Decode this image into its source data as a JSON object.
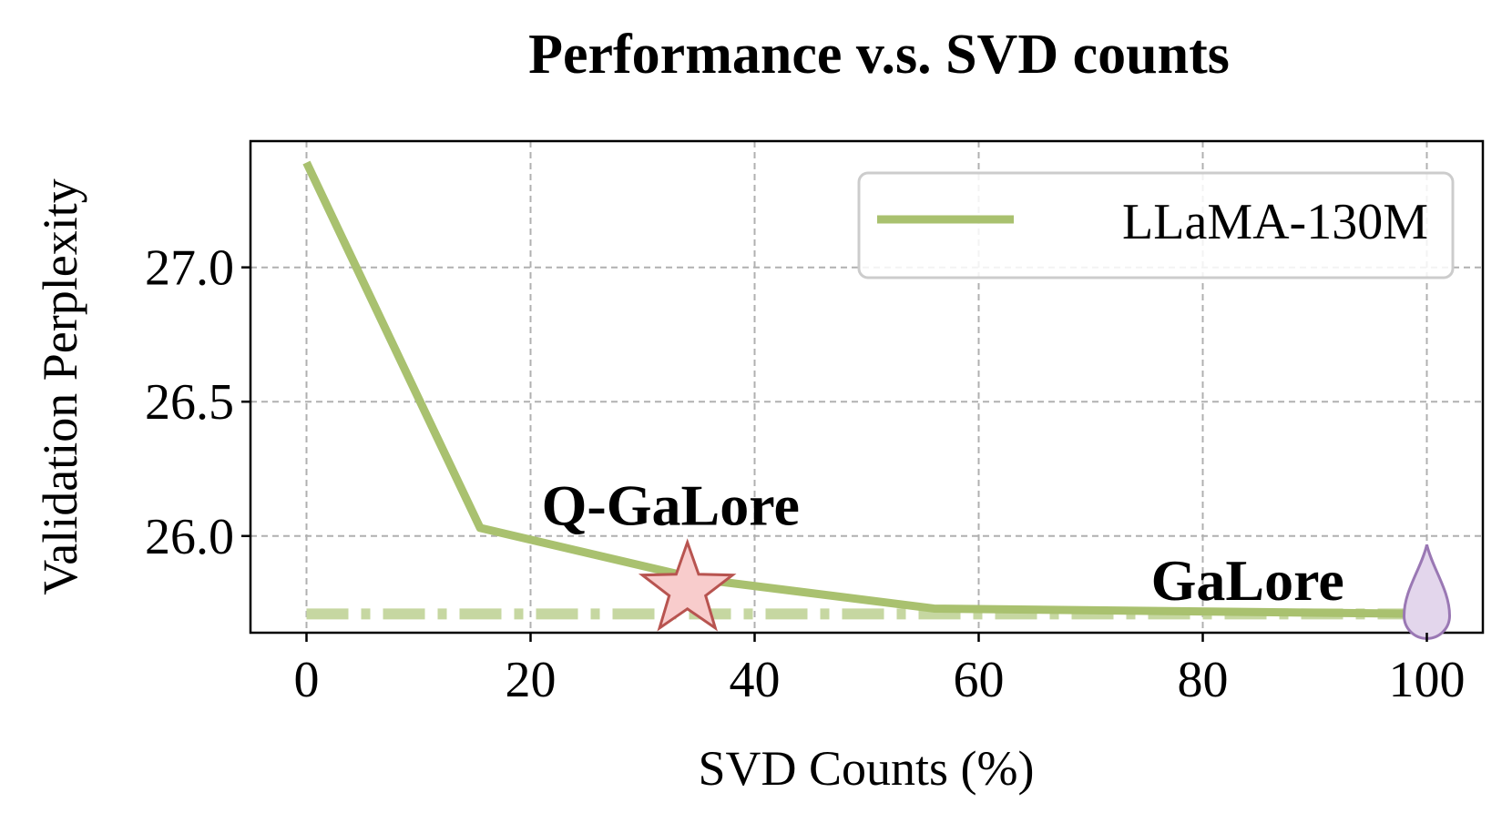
{
  "chart_data": {
    "type": "line",
    "title": "Performance v.s. SVD counts",
    "xlabel": "SVD Counts (%)",
    "ylabel": "Validation Perplexity",
    "xlim": [
      -5,
      105
    ],
    "ylim": [
      25.64,
      27.47
    ],
    "xticks": [
      0,
      20,
      40,
      60,
      80,
      100
    ],
    "xtick_labels": [
      "0",
      "20",
      "40",
      "60",
      "80",
      "100"
    ],
    "yticks": [
      26.0,
      26.5,
      27.0
    ],
    "ytick_labels": [
      "26.0",
      "26.5",
      "27.0"
    ],
    "grid": true,
    "legend_position": "top-right",
    "series": [
      {
        "name": "LLaMA-130M",
        "color": "#a9c16f",
        "x": [
          0,
          15.5,
          35,
          56,
          100
        ],
        "y": [
          27.39,
          26.03,
          25.84,
          25.73,
          25.71
        ]
      }
    ],
    "reference_line": {
      "y": 25.71,
      "x_range": [
        0,
        100
      ],
      "style": "dashdot",
      "color": "#c6d7a1"
    },
    "annotations": [
      {
        "text": "Q-GaLore",
        "color": "#f39b9b",
        "marker": "star",
        "marker_color": "#f8cccc",
        "marker_edge": "#b85450",
        "x": 34,
        "y": 25.8,
        "label_x": 32.5,
        "label_y": 26.11
      },
      {
        "text": "GaLore",
        "color": "#a884c0",
        "marker": "drop",
        "marker_color": "#e3d6ec",
        "marker_edge": "#9a78b4",
        "x": 100,
        "y": 25.71,
        "label_x": 84,
        "label_y": 25.83
      }
    ]
  }
}
